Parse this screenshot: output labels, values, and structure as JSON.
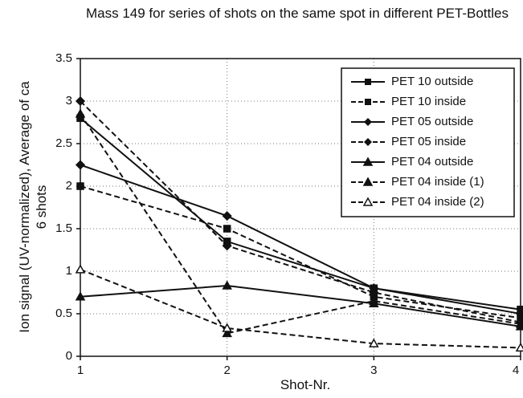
{
  "chart_data": {
    "type": "line",
    "title": "Mass 149 for series of shots on the same spot in different PET-Bottles",
    "xlabel": "Shot-Nr.",
    "ylabel": "Ion signal (UV-normalized), Average of ca 6 shots",
    "x": [
      1,
      2,
      3,
      4
    ],
    "xlim": [
      1,
      4
    ],
    "xticks": [
      1,
      2,
      3,
      4
    ],
    "ylim": [
      0,
      3.5
    ],
    "yticks": [
      0,
      0.5,
      1,
      1.5,
      2,
      2.5,
      3,
      3.5
    ],
    "grid": true,
    "legend": "upper right",
    "series": [
      {
        "name": "PET 10 outside",
        "color": "#111111",
        "dashed": false,
        "marker": "square",
        "values": [
          2.8,
          1.35,
          0.8,
          0.55
        ]
      },
      {
        "name": "PET 10 inside",
        "color": "#111111",
        "dashed": true,
        "marker": "square",
        "values": [
          2.0,
          1.5,
          0.7,
          0.45
        ]
      },
      {
        "name": "PET 05 outside",
        "color": "#111111",
        "dashed": false,
        "marker": "diamond",
        "values": [
          2.25,
          1.65,
          0.8,
          0.5
        ]
      },
      {
        "name": "PET 05 inside",
        "color": "#111111",
        "dashed": true,
        "marker": "diamond",
        "values": [
          3.0,
          1.3,
          0.75,
          0.4
        ]
      },
      {
        "name": "PET 04 outside",
        "color": "#111111",
        "dashed": false,
        "marker": "triangle",
        "values": [
          0.7,
          0.83,
          0.62,
          0.35
        ]
      },
      {
        "name": "PET 04 inside (1)",
        "color": "#111111",
        "dashed": true,
        "marker": "triangle",
        "values": [
          2.85,
          0.27,
          0.65,
          0.38
        ]
      },
      {
        "name": "PET 04 inside (2)",
        "color": "#111111",
        "dashed": true,
        "marker": "open-triangle",
        "values": [
          1.02,
          0.33,
          0.15,
          0.1
        ]
      }
    ]
  }
}
